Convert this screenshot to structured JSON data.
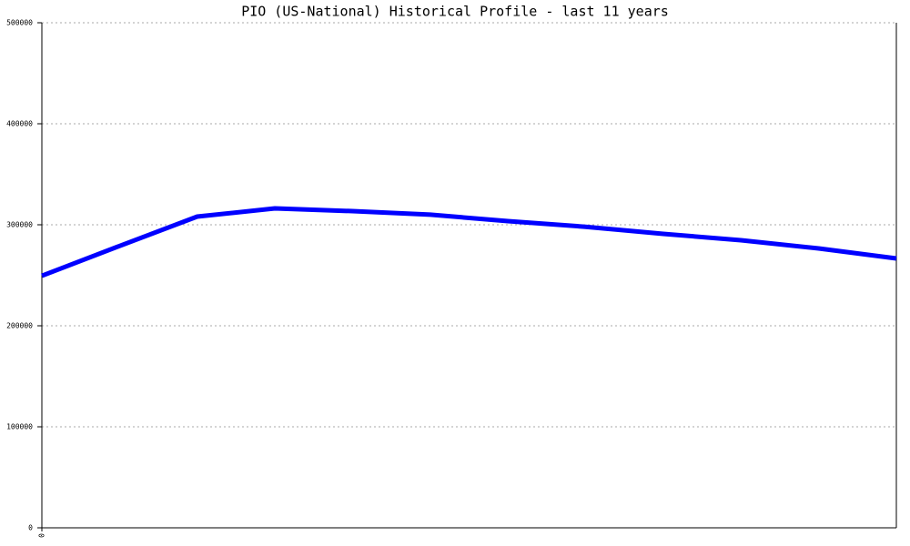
{
  "chart_data": {
    "type": "line",
    "title": "PIO (US-National) Historical Profile - last 11 years",
    "x": [
      0,
      1,
      2,
      3,
      4,
      5,
      6,
      7,
      8,
      9,
      10,
      11
    ],
    "series": [
      {
        "name": "PIO",
        "color": "#0000ff",
        "values": [
          249500,
          279000,
          308100,
          316200,
          313500,
          310000,
          303600,
          298000,
          291000,
          284700,
          276600,
          266700
        ]
      }
    ],
    "xlim": [
      0,
      11
    ],
    "xticks": [
      0
    ],
    "ylim": [
      0,
      500000
    ],
    "yticks": [
      0,
      100000,
      200000,
      300000,
      400000,
      500000
    ],
    "grid": true
  }
}
